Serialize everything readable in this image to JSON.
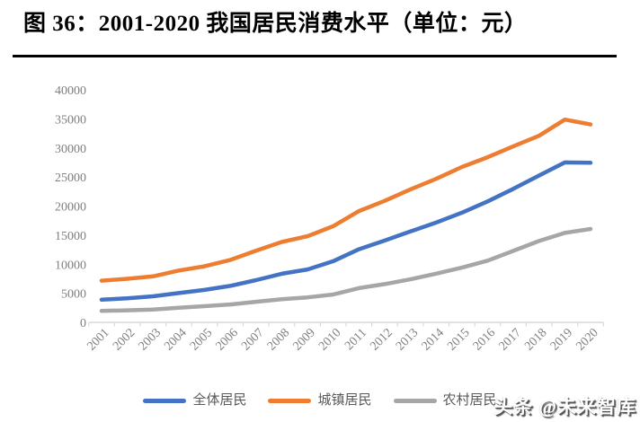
{
  "header": {
    "title": "图 36：2001-2020 我国居民消费水平（单位：元）"
  },
  "chart_data": {
    "type": "line",
    "title": "2001-2020 我国居民消费水平",
    "unit": "元",
    "x": [
      2001,
      2002,
      2003,
      2004,
      2005,
      2006,
      2007,
      2008,
      2009,
      2010,
      2011,
      2012,
      2013,
      2014,
      2015,
      2016,
      2017,
      2018,
      2019,
      2020
    ],
    "series": [
      {
        "name": "全体居民",
        "color": "#4472C4",
        "values": [
          3887,
          4144,
          4475,
          5032,
          5573,
          6263,
          7255,
          8349,
          9098,
          10522,
          12570,
          14074,
          15632,
          17166,
          18852,
          20801,
          22969,
          25245,
          27504,
          27438
        ]
      },
      {
        "name": "城镇居民",
        "color": "#ED7D31",
        "values": [
          7161,
          7486,
          7908,
          8912,
          9644,
          10739,
          12309,
          13828,
          14812,
          16546,
          19139,
          20894,
          22880,
          24674,
          26713,
          28405,
          30284,
          32100,
          34879,
          34033
        ]
      },
      {
        "name": "农村居民",
        "color": "#A6A6A6",
        "values": [
          1969,
          2062,
          2201,
          2521,
          2784,
          3066,
          3538,
          3981,
          4295,
          4782,
          5880,
          6573,
          7397,
          8365,
          9409,
          10609,
          12300,
          13985,
          15382,
          16063
        ]
      }
    ],
    "ylim": [
      0,
      40000
    ],
    "ytick_step": 5000,
    "ytick_labels": [
      "0",
      "5000",
      "10000",
      "15000",
      "20000",
      "25000",
      "30000",
      "35000",
      "40000"
    ],
    "grid": false,
    "legend_position": "bottom",
    "axis_color": "#D9D9D9",
    "tick_label_color": "#7F7F7F",
    "legend_text_color": "#595959"
  },
  "watermark": {
    "text": "头条 @未来智库"
  }
}
